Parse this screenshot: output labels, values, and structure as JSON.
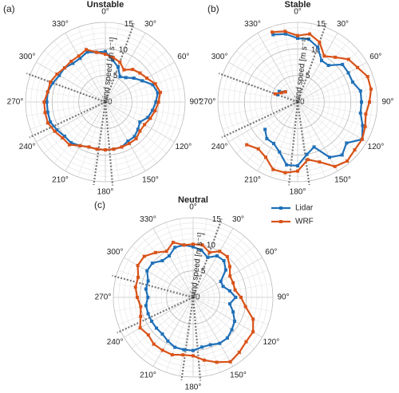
{
  "chart_data": [
    {
      "type": "polar",
      "panel": "(a)",
      "title": "Unstable",
      "r_label": "wind speed [m s⁻¹]",
      "theta": [
        0,
        10,
        20,
        30,
        40,
        50,
        60,
        70,
        80,
        90,
        100,
        110,
        120,
        130,
        140,
        150,
        160,
        170,
        180,
        190,
        200,
        210,
        220,
        230,
        240,
        250,
        260,
        270,
        280,
        290,
        300,
        310,
        320,
        330,
        340,
        350
      ],
      "rlim": [
        0,
        15
      ],
      "rticks": [
        0,
        5,
        10,
        15
      ],
      "thetaticks": [
        {
          "value": 0,
          "label": "0°"
        },
        {
          "value": 30,
          "label": "30°"
        },
        {
          "value": 60,
          "label": "60°"
        },
        {
          "value": 90,
          "label": "90°"
        },
        {
          "value": 120,
          "label": "120°"
        },
        {
          "value": 150,
          "label": "150°"
        },
        {
          "value": 180,
          "label": "180°"
        },
        {
          "value": 210,
          "label": "210°"
        },
        {
          "value": 240,
          "label": "240°"
        },
        {
          "value": 270,
          "label": "270°"
        },
        {
          "value": 300,
          "label": "300°"
        },
        {
          "value": 330,
          "label": "330°"
        }
      ],
      "sector_lines": [
        20,
        175,
        188,
        245,
        290
      ],
      "series": [
        {
          "color": "#1f70b8",
          "values": [
            9.5,
            8,
            7,
            5.5,
            6,
            7,
            8,
            9.5,
            10,
            9.5,
            9,
            8.5,
            7.5,
            8,
            8.5,
            8.5,
            9,
            9,
            9,
            9,
            9,
            9.5,
            10,
            10,
            10.5,
            11,
            11,
            11,
            11,
            10.5,
            10,
            10,
            9.5,
            9.5,
            10,
            9.5
          ]
        },
        {
          "color": "#d95319",
          "values": [
            9,
            8.5,
            8,
            7,
            8,
            8.5,
            9,
            10,
            10.5,
            10,
            9.5,
            9,
            8.5,
            8.5,
            9,
            9,
            9,
            9,
            9,
            9,
            9,
            9.5,
            10.5,
            10.5,
            11,
            11.5,
            11.5,
            11.5,
            11,
            11,
            10.5,
            10,
            10,
            10,
            10.5,
            9.5
          ]
        }
      ]
    },
    {
      "type": "polar",
      "panel": "(b)",
      "title": "Stable",
      "r_label": "wind speed [m s⁻¹]",
      "theta": [
        0,
        10,
        20,
        30,
        40,
        50,
        60,
        70,
        80,
        90,
        100,
        110,
        120,
        130,
        140,
        150,
        160,
        170,
        180,
        190,
        200,
        210,
        220,
        230,
        240,
        250,
        260,
        270,
        280,
        290,
        300,
        310,
        320,
        330,
        340,
        350
      ],
      "rlim": [
        0,
        15
      ],
      "rticks": [
        0,
        5,
        10,
        15
      ],
      "thetaticks": [
        {
          "value": 0,
          "label": "0°"
        },
        {
          "value": 30,
          "label": "30°"
        },
        {
          "value": 60,
          "label": "60°"
        },
        {
          "value": 90,
          "label": "90°"
        },
        {
          "value": 120,
          "label": "120°"
        },
        {
          "value": 150,
          "label": "150°"
        },
        {
          "value": 180,
          "label": "180°"
        },
        {
          "value": 210,
          "label": "210°"
        },
        {
          "value": 240,
          "label": "240°"
        },
        {
          "value": 270,
          "label": "270°"
        },
        {
          "value": 300,
          "label": "300°"
        },
        {
          "value": 330,
          "label": "330°"
        }
      ],
      "sector_lines": [
        20,
        172,
        186,
        245,
        290
      ],
      "series": [
        {
          "color": "#1f70b8",
          "values": [
            12,
            12,
            11,
            9,
            9,
            11,
            11,
            11,
            12,
            12,
            12,
            13,
            14,
            12,
            13,
            12,
            9,
            10,
            12,
            12,
            10,
            9,
            9,
            8,
            null,
            null,
            null,
            null,
            null,
            4,
            4,
            3,
            null,
            null,
            13.5,
            13
          ]
        },
        {
          "color": "#d95319",
          "values": [
            12.5,
            13,
            12,
            10,
            11,
            12.5,
            13,
            14,
            14,
            13.5,
            13,
            13.5,
            14,
            14,
            14.5,
            14,
            12,
            11,
            13,
            13.5,
            13.5,
            12,
            11.5,
            12.5,
            null,
            null,
            null,
            null,
            null,
            4.5,
            3.5,
            3,
            null,
            null,
            14,
            13.5
          ]
        }
      ]
    },
    {
      "type": "polar",
      "panel": "(c)",
      "title": "Neutral",
      "r_label": "wind speed [m s⁻¹]",
      "theta": [
        0,
        10,
        20,
        30,
        40,
        50,
        60,
        70,
        80,
        90,
        100,
        110,
        120,
        130,
        140,
        150,
        160,
        170,
        180,
        190,
        200,
        210,
        220,
        230,
        240,
        250,
        260,
        270,
        280,
        290,
        300,
        310,
        320,
        330,
        340,
        350
      ],
      "rlim": [
        0,
        15
      ],
      "rticks": [
        0,
        5,
        10,
        15
      ],
      "thetaticks": [
        {
          "value": 0,
          "label": "0°"
        },
        {
          "value": 30,
          "label": "30°"
        },
        {
          "value": 60,
          "label": "60°"
        },
        {
          "value": 90,
          "label": "90°"
        },
        {
          "value": 120,
          "label": "120°"
        },
        {
          "value": 150,
          "label": "150°"
        },
        {
          "value": 180,
          "label": "180°"
        },
        {
          "value": 210,
          "label": "210°"
        },
        {
          "value": 240,
          "label": "240°"
        },
        {
          "value": 270,
          "label": "270°"
        },
        {
          "value": 300,
          "label": "300°"
        },
        {
          "value": 330,
          "label": "330°"
        }
      ],
      "sector_lines": [
        20,
        175,
        188,
        245,
        285
      ],
      "legend": "upper right",
      "series": [
        {
          "name": "Lidar",
          "color": "#1f70b8",
          "values": [
            9.5,
            9,
            8,
            9,
            9,
            8,
            6,
            6,
            7,
            8,
            7,
            8,
            9,
            9.5,
            10,
            10,
            9.5,
            9.5,
            10,
            10,
            10,
            9.5,
            9,
            9,
            9,
            9,
            9,
            8.5,
            9,
            9,
            10,
            10,
            9,
            9,
            10,
            10
          ]
        },
        {
          "name": "WRF",
          "color": "#d95319",
          "values": [
            10,
            10,
            9,
            10,
            10,
            9,
            8,
            8,
            8,
            9,
            10,
            12,
            13,
            13,
            13.5,
            14,
            13,
            12,
            11,
            11,
            11.5,
            11.5,
            11.5,
            11,
            11.5,
            10.5,
            10,
            10.5,
            11,
            11,
            12,
            12,
            11,
            10,
            11,
            10
          ]
        }
      ]
    }
  ]
}
